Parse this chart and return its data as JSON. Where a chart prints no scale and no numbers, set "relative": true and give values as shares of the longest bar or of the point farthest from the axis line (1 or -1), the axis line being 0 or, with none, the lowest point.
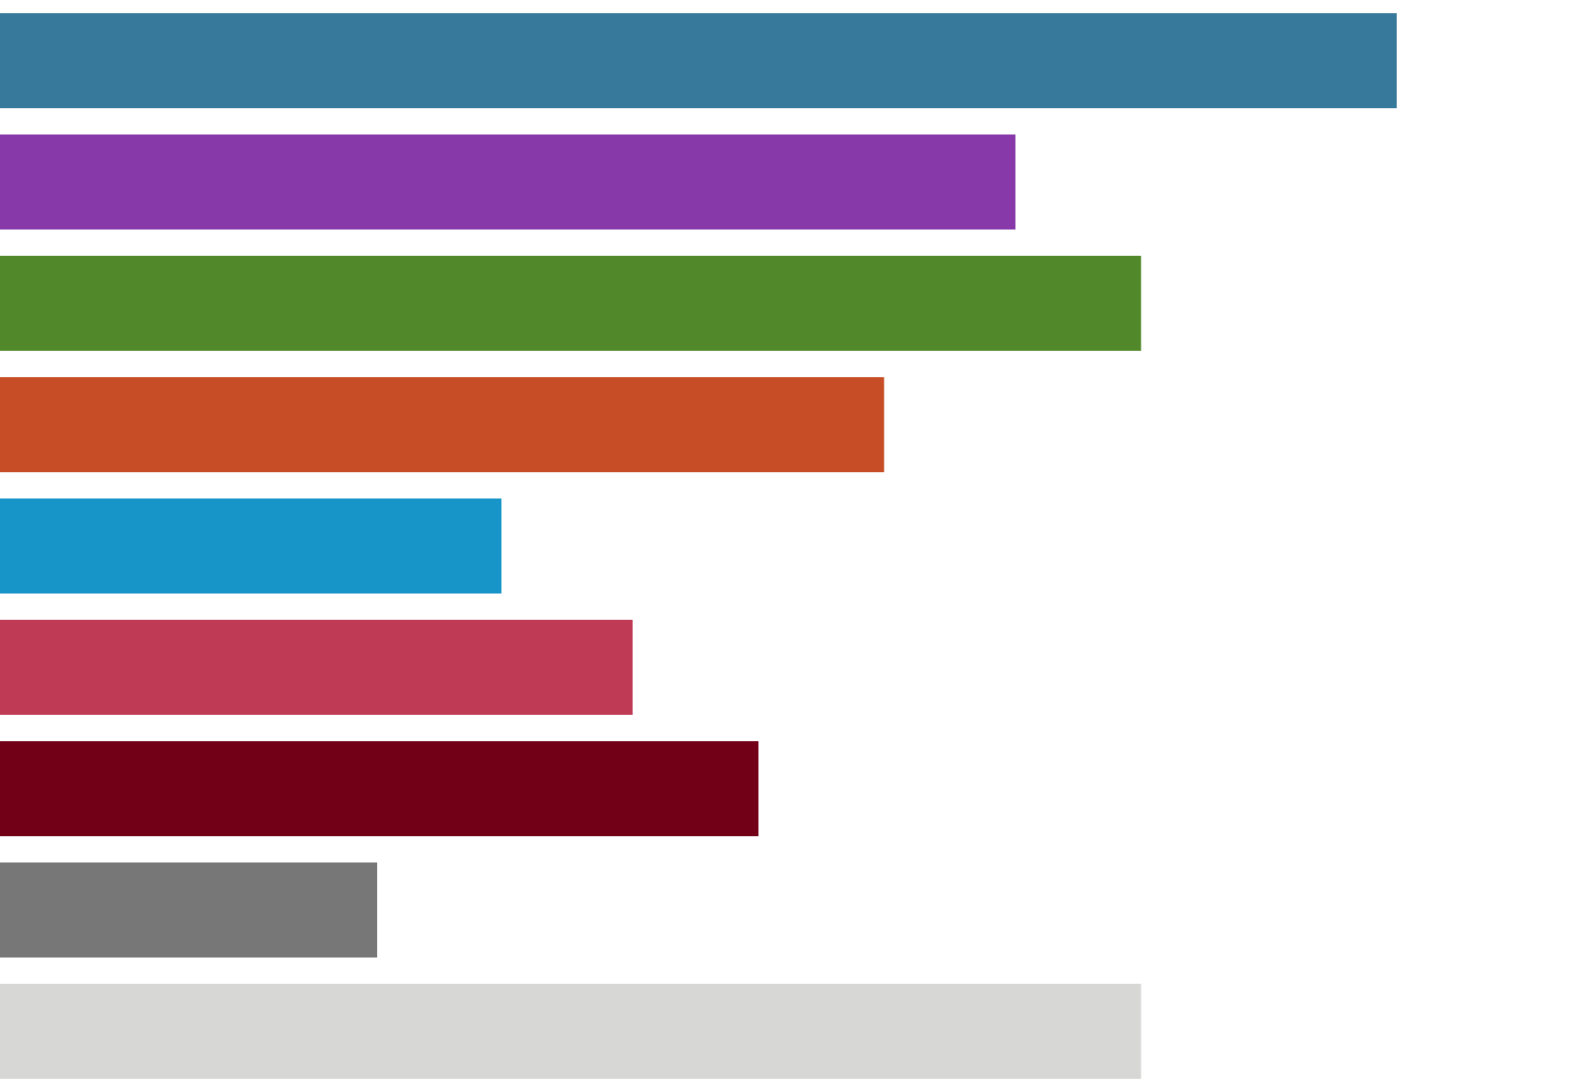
{
  "chart_data": {
    "type": "bar",
    "orientation": "horizontal",
    "relative": true,
    "categories": [
      null,
      null,
      null,
      null,
      null,
      null,
      null,
      null,
      null
    ],
    "values": [
      1,
      0.727,
      0.817,
      0.633,
      0.359,
      0.453,
      0.543,
      0.27,
      0.817
    ],
    "colors": [
      "#36799a",
      "#8739aa",
      "#518829",
      "#c64d25",
      "#1795c8",
      "#bf3a55",
      "#720017",
      "#777777",
      "#d7d7d6"
    ]
  }
}
